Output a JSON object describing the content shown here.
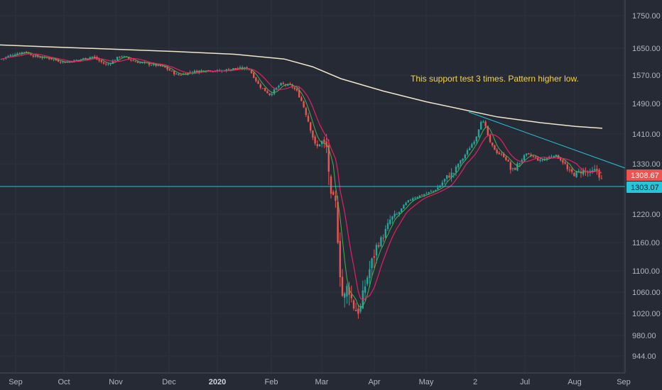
{
  "chart_data": {
    "type": "candlestick",
    "title": "",
    "annotation": "This support test 3 times. Pattern higher low.",
    "price_tags": [
      {
        "value": 1308.67,
        "label": "1308.67",
        "color": "#ef5350"
      },
      {
        "value": 1303.07,
        "label": "1303.07",
        "color": "#26c6da"
      }
    ],
    "support_line": {
      "y": 1303.07,
      "color": "#26c6da"
    },
    "trendline": {
      "from": [
        "2020-06-01",
        1455
      ],
      "to": [
        "2020-09-03",
        1322
      ],
      "color": "#26c6da"
    },
    "y_ticks": [
      "1750.00",
      "1650.00",
      "1570.00",
      "1490.00",
      "1410.00",
      "1330.00",
      "1220.00",
      "1160.00",
      "1100.00",
      "1060.00",
      "1020.00",
      "980.00",
      "944.00"
    ],
    "x_ticks": [
      "Sep",
      "Oct",
      "Nov",
      "Dec",
      "2020",
      "Feb",
      "Mar",
      "Apr",
      "May",
      "2",
      "Jul",
      "Aug",
      "Sep"
    ],
    "bold_x_ticks": [
      "2020"
    ],
    "up_color": "#26a69a",
    "down_color": "#ef5350",
    "ma_colors": {
      "fast": "#4caf50",
      "medium": "#e91e63",
      "long": "#f0e6c8"
    },
    "grid": true
  }
}
